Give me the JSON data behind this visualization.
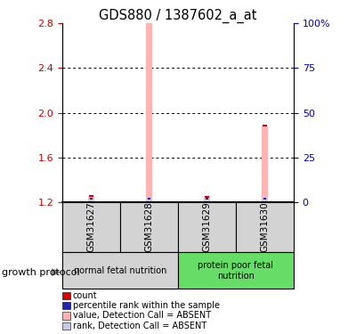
{
  "title": "GDS880 / 1387602_a_at",
  "samples": [
    "GSM31627",
    "GSM31628",
    "GSM31629",
    "GSM31630"
  ],
  "value_bars": [
    1.245,
    2.8,
    1.235,
    1.875
  ],
  "value_color": "#ffb3b3",
  "rank_color": "#c8c8e8",
  "count_color": "#dd0000",
  "percentile_color": "#2222aa",
  "ylim_left": [
    1.2,
    2.8
  ],
  "ylim_right": [
    0,
    100
  ],
  "yticks_left": [
    1.2,
    1.6,
    2.0,
    2.4,
    2.8
  ],
  "yticks_right": [
    0,
    25,
    50,
    75,
    100
  ],
  "ytick_labels_right": [
    "0",
    "25",
    "50",
    "75",
    "100%"
  ],
  "left_tick_color": "#cc0000",
  "right_tick_color": "#0000bb",
  "groups": [
    {
      "label": "normal fetal nutrition",
      "samples": [
        0,
        1
      ],
      "color": "#d3d3d3"
    },
    {
      "label": "protein poor fetal\nnutrition",
      "samples": [
        2,
        3
      ],
      "color": "#66dd66"
    }
  ],
  "group_label": "growth protocol",
  "bar_width": 0.12,
  "bar_bottom": 1.2,
  "legend_items": [
    {
      "label": "count",
      "color": "#dd0000"
    },
    {
      "label": "percentile rank within the sample",
      "color": "#2222aa"
    },
    {
      "label": "value, Detection Call = ABSENT",
      "color": "#ffb3b3"
    },
    {
      "label": "rank, Detection Call = ABSENT",
      "color": "#c8c8e8"
    }
  ]
}
